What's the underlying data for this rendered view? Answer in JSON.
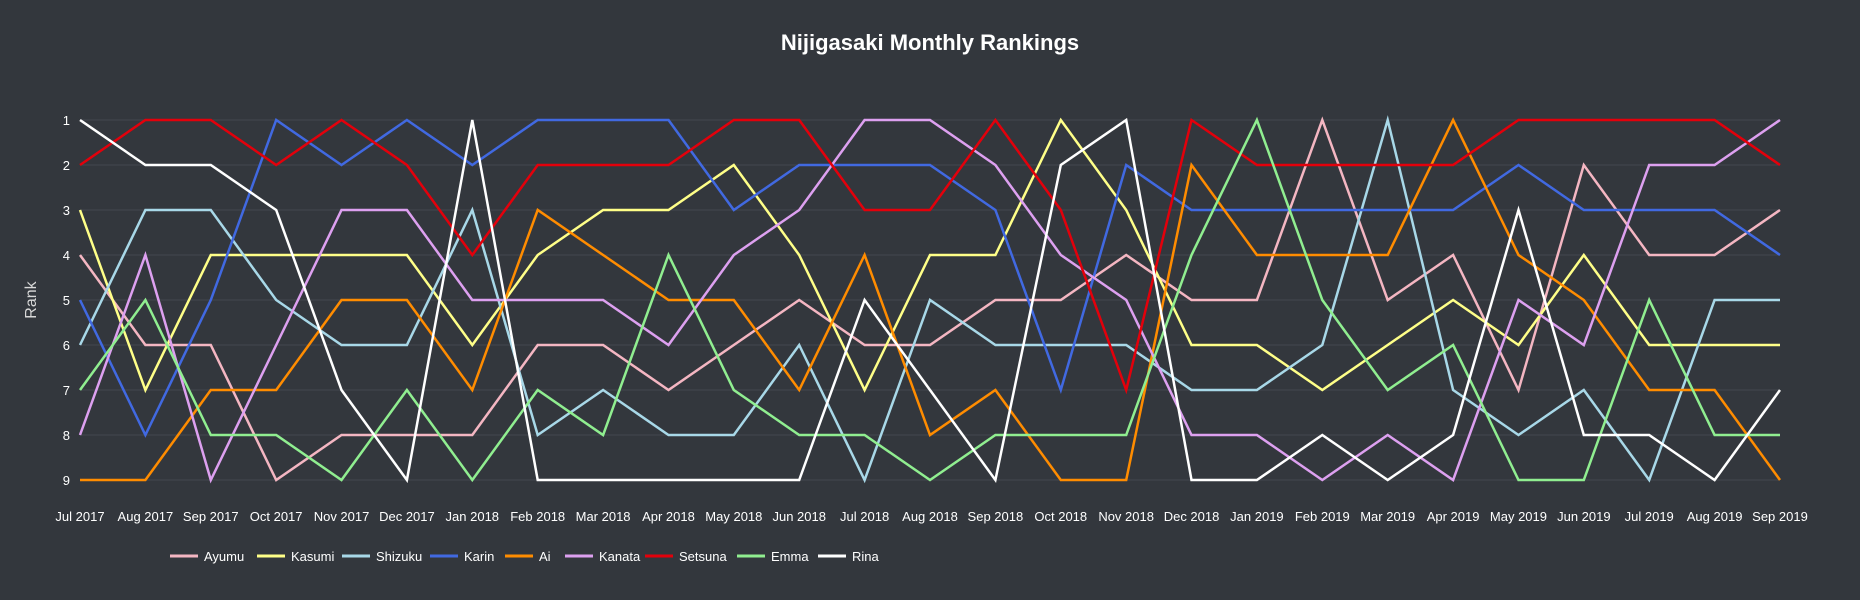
{
  "chart_data": {
    "type": "line",
    "title": "Nijigasaki Monthly Rankings",
    "xlabel": "",
    "ylabel": "Rank",
    "y_inverted": true,
    "ylim": [
      9,
      1
    ],
    "yticks": [
      1,
      2,
      3,
      4,
      5,
      6,
      7,
      8,
      9
    ],
    "grid": true,
    "legend_position": "bottom-left",
    "background": "#33373d",
    "categories": [
      "Jul 2017",
      "Aug 2017",
      "Sep 2017",
      "Oct 2017",
      "Nov 2017",
      "Dec 2017",
      "Jan 2018",
      "Feb 2018",
      "Mar 2018",
      "Apr 2018",
      "May 2018",
      "Jun 2018",
      "Jul 2018",
      "Aug 2018",
      "Sep 2018",
      "Oct 2018",
      "Nov 2018",
      "Dec 2018",
      "Jan 2019",
      "Feb 2019",
      "Mar 2019",
      "Apr 2019",
      "May 2019",
      "Jun 2019",
      "Jul 2019",
      "Aug 2019",
      "Sep 2019"
    ],
    "series": [
      {
        "name": "Ayumu",
        "color": "#f4b6c2",
        "values": [
          4,
          6,
          6,
          9,
          8,
          8,
          8,
          6,
          6,
          7,
          6,
          5,
          6,
          6,
          5,
          5,
          4,
          5,
          5,
          1,
          5,
          4,
          7,
          2,
          4,
          4,
          3
        ]
      },
      {
        "name": "Kasumi",
        "color": "#ffff88",
        "values": [
          3,
          7,
          4,
          4,
          4,
          4,
          6,
          4,
          3,
          3,
          2,
          4,
          7,
          4,
          4,
          1,
          3,
          6,
          6,
          7,
          6,
          5,
          6,
          4,
          6,
          6,
          6
        ]
      },
      {
        "name": "Shizuku",
        "color": "#a8d8e8",
        "values": [
          6,
          3,
          3,
          5,
          6,
          6,
          3,
          8,
          7,
          8,
          8,
          6,
          9,
          5,
          6,
          6,
          6,
          7,
          7,
          6,
          1,
          7,
          8,
          7,
          9,
          5,
          5
        ]
      },
      {
        "name": "Karin",
        "color": "#4169e1",
        "values": [
          5,
          8,
          5,
          1,
          2,
          1,
          2,
          1,
          1,
          1,
          3,
          2,
          2,
          2,
          3,
          7,
          2,
          3,
          3,
          3,
          3,
          3,
          2,
          3,
          3,
          3,
          4
        ]
      },
      {
        "name": "Ai",
        "color": "#ff8c00",
        "values": [
          9,
          9,
          7,
          7,
          5,
          5,
          7,
          3,
          4,
          5,
          5,
          7,
          4,
          8,
          7,
          9,
          9,
          2,
          4,
          4,
          4,
          1,
          4,
          5,
          7,
          7,
          9
        ]
      },
      {
        "name": "Kanata",
        "color": "#dda0f0",
        "values": [
          8,
          4,
          9,
          6,
          3,
          3,
          5,
          5,
          5,
          6,
          4,
          3,
          1,
          1,
          2,
          4,
          5,
          8,
          8,
          9,
          8,
          9,
          5,
          6,
          2,
          2,
          1
        ]
      },
      {
        "name": "Setsuna",
        "color": "#e3000b",
        "values": [
          2,
          1,
          1,
          2,
          1,
          2,
          4,
          2,
          2,
          2,
          1,
          1,
          3,
          3,
          1,
          3,
          7,
          1,
          2,
          2,
          2,
          2,
          1,
          1,
          1,
          1,
          2
        ]
      },
      {
        "name": "Emma",
        "color": "#90ee90",
        "values": [
          7,
          5,
          8,
          8,
          9,
          7,
          9,
          7,
          8,
          4,
          7,
          8,
          8,
          9,
          8,
          8,
          8,
          4,
          1,
          5,
          7,
          6,
          9,
          9,
          5,
          8,
          8
        ]
      },
      {
        "name": "Rina",
        "color": "#ffffff",
        "values": [
          1,
          2,
          2,
          3,
          7,
          9,
          1,
          9,
          9,
          9,
          9,
          9,
          5,
          7,
          9,
          2,
          1,
          9,
          9,
          8,
          9,
          8,
          3,
          8,
          8,
          9,
          7
        ]
      }
    ]
  }
}
